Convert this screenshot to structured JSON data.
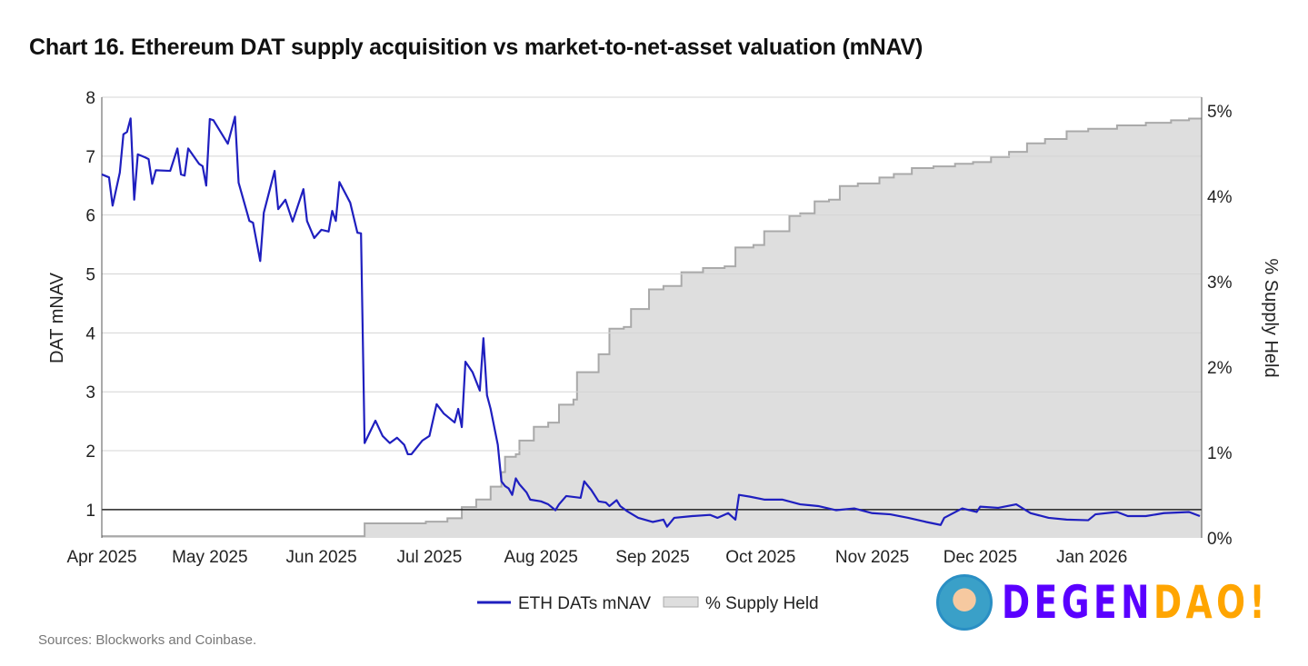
{
  "chart_data": {
    "type": "line",
    "title": "Chart 16. Ethereum DAT supply acquisition vs market-to-net-asset valuation (mNAV)",
    "ylabel": "DAT mNAV",
    "y2label": "% Supply Held",
    "xlim": [
      "2025-04-01",
      "2026-01-31"
    ],
    "ylim": [
      0.52,
      8
    ],
    "y2lim": [
      0,
      5
    ],
    "x_ticks": [
      "Apr 2025",
      "May 2025",
      "Jun 2025",
      "Jul 2025",
      "Aug 2025",
      "Sep 2025",
      "Oct 2025",
      "Nov 2025",
      "Dec 2025",
      "Jan 2026"
    ],
    "x_tick_dates": [
      "2025-04-01",
      "2025-05-01",
      "2025-06-01",
      "2025-07-01",
      "2025-08-01",
      "2025-09-01",
      "2025-10-01",
      "2025-11-01",
      "2025-12-01",
      "2026-01-01"
    ],
    "y_ticks": [
      "1",
      "2",
      "3",
      "4",
      "5",
      "6",
      "7",
      "8"
    ],
    "y2_ticks": [
      "0%",
      "1%",
      "2%",
      "3%",
      "4%",
      "5%"
    ],
    "reference_line": 1,
    "grid": true,
    "legend_placement": "bottom",
    "series": [
      {
        "name": "ETH DATs mNAV",
        "axis": "left",
        "color": "#1f1fbf",
        "style": "line",
        "points": [
          [
            "2025-04-01",
            6.69
          ],
          [
            "2025-04-03",
            6.64
          ],
          [
            "2025-04-04",
            6.16
          ],
          [
            "2025-04-06",
            6.72
          ],
          [
            "2025-04-07",
            7.37
          ],
          [
            "2025-04-08",
            7.41
          ],
          [
            "2025-04-09",
            7.64
          ],
          [
            "2025-04-10",
            6.26
          ],
          [
            "2025-04-11",
            7.03
          ],
          [
            "2025-04-13",
            6.98
          ],
          [
            "2025-04-14",
            6.95
          ],
          [
            "2025-04-15",
            6.53
          ],
          [
            "2025-04-16",
            6.76
          ],
          [
            "2025-04-20",
            6.75
          ],
          [
            "2025-04-22",
            7.13
          ],
          [
            "2025-04-23",
            6.69
          ],
          [
            "2025-04-24",
            6.67
          ],
          [
            "2025-04-25",
            7.13
          ],
          [
            "2025-04-28",
            6.87
          ],
          [
            "2025-04-29",
            6.83
          ],
          [
            "2025-04-30",
            6.5
          ],
          [
            "2025-05-01",
            7.63
          ],
          [
            "2025-05-02",
            7.61
          ],
          [
            "2025-05-06",
            7.21
          ],
          [
            "2025-05-08",
            7.67
          ],
          [
            "2025-05-09",
            6.55
          ],
          [
            "2025-05-12",
            5.9
          ],
          [
            "2025-05-13",
            5.87
          ],
          [
            "2025-05-15",
            5.22
          ],
          [
            "2025-05-16",
            6.04
          ],
          [
            "2025-05-19",
            6.75
          ],
          [
            "2025-05-20",
            6.1
          ],
          [
            "2025-05-22",
            6.26
          ],
          [
            "2025-05-24",
            5.89
          ],
          [
            "2025-05-27",
            6.44
          ],
          [
            "2025-05-28",
            5.9
          ],
          [
            "2025-05-30",
            5.61
          ],
          [
            "2025-06-01",
            5.75
          ],
          [
            "2025-06-03",
            5.72
          ],
          [
            "2025-06-04",
            6.07
          ],
          [
            "2025-06-05",
            5.9
          ],
          [
            "2025-06-06",
            6.56
          ],
          [
            "2025-06-09",
            6.21
          ],
          [
            "2025-06-11",
            5.7
          ],
          [
            "2025-06-12",
            5.69
          ],
          [
            "2025-06-13",
            2.13
          ],
          [
            "2025-06-16",
            2.51
          ],
          [
            "2025-06-18",
            2.25
          ],
          [
            "2025-06-20",
            2.13
          ],
          [
            "2025-06-22",
            2.22
          ],
          [
            "2025-06-24",
            2.1
          ],
          [
            "2025-06-25",
            1.94
          ],
          [
            "2025-06-26",
            1.94
          ],
          [
            "2025-06-29",
            2.17
          ],
          [
            "2025-07-01",
            2.25
          ],
          [
            "2025-07-03",
            2.79
          ],
          [
            "2025-07-05",
            2.63
          ],
          [
            "2025-07-08",
            2.48
          ],
          [
            "2025-07-09",
            2.71
          ],
          [
            "2025-07-10",
            2.4
          ],
          [
            "2025-07-11",
            3.51
          ],
          [
            "2025-07-13",
            3.33
          ],
          [
            "2025-07-15",
            3.02
          ],
          [
            "2025-07-16",
            3.91
          ],
          [
            "2025-07-17",
            2.94
          ],
          [
            "2025-07-18",
            2.71
          ],
          [
            "2025-07-20",
            2.1
          ],
          [
            "2025-07-21",
            1.48
          ],
          [
            "2025-07-22",
            1.4
          ],
          [
            "2025-07-23",
            1.36
          ],
          [
            "2025-07-24",
            1.25
          ],
          [
            "2025-07-25",
            1.53
          ],
          [
            "2025-07-26",
            1.43
          ],
          [
            "2025-07-28",
            1.29
          ],
          [
            "2025-07-29",
            1.17
          ],
          [
            "2025-08-01",
            1.14
          ],
          [
            "2025-08-03",
            1.09
          ],
          [
            "2025-08-05",
            0.99
          ],
          [
            "2025-08-06",
            1.09
          ],
          [
            "2025-08-08",
            1.23
          ],
          [
            "2025-08-12",
            1.2
          ],
          [
            "2025-08-13",
            1.48
          ],
          [
            "2025-08-15",
            1.33
          ],
          [
            "2025-08-17",
            1.14
          ],
          [
            "2025-08-19",
            1.12
          ],
          [
            "2025-08-20",
            1.06
          ],
          [
            "2025-08-22",
            1.16
          ],
          [
            "2025-08-23",
            1.06
          ],
          [
            "2025-08-25",
            0.97
          ],
          [
            "2025-08-28",
            0.86
          ],
          [
            "2025-09-01",
            0.79
          ],
          [
            "2025-09-04",
            0.83
          ],
          [
            "2025-09-05",
            0.71
          ],
          [
            "2025-09-07",
            0.86
          ],
          [
            "2025-09-12",
            0.89
          ],
          [
            "2025-09-17",
            0.91
          ],
          [
            "2025-09-19",
            0.86
          ],
          [
            "2025-09-22",
            0.94
          ],
          [
            "2025-09-24",
            0.83
          ],
          [
            "2025-09-25",
            1.25
          ],
          [
            "2025-09-28",
            1.22
          ],
          [
            "2025-10-02",
            1.17
          ],
          [
            "2025-10-07",
            1.17
          ],
          [
            "2025-10-12",
            1.09
          ],
          [
            "2025-10-17",
            1.06
          ],
          [
            "2025-10-22",
            0.99
          ],
          [
            "2025-10-27",
            1.02
          ],
          [
            "2025-11-01",
            0.94
          ],
          [
            "2025-11-06",
            0.92
          ],
          [
            "2025-11-11",
            0.86
          ],
          [
            "2025-11-16",
            0.79
          ],
          [
            "2025-11-20",
            0.74
          ],
          [
            "2025-11-21",
            0.86
          ],
          [
            "2025-11-26",
            1.02
          ],
          [
            "2025-11-30",
            0.96
          ],
          [
            "2025-12-01",
            1.05
          ],
          [
            "2025-12-06",
            1.03
          ],
          [
            "2025-12-11",
            1.09
          ],
          [
            "2025-12-15",
            0.94
          ],
          [
            "2025-12-20",
            0.86
          ],
          [
            "2025-12-25",
            0.83
          ],
          [
            "2025-12-31",
            0.82
          ],
          [
            "2026-01-02",
            0.92
          ],
          [
            "2026-01-08",
            0.96
          ],
          [
            "2026-01-11",
            0.89
          ],
          [
            "2026-01-16",
            0.89
          ],
          [
            "2026-01-21",
            0.94
          ],
          [
            "2026-01-28",
            0.96
          ],
          [
            "2026-01-31",
            0.89
          ]
        ]
      },
      {
        "name": "% Supply Held",
        "axis": "right",
        "color": "#a9a9a9",
        "fill": "#dedede",
        "style": "step-area",
        "points": [
          [
            "2025-04-01",
            0.02
          ],
          [
            "2025-06-13",
            0.17
          ],
          [
            "2025-06-30",
            0.19
          ],
          [
            "2025-07-06",
            0.23
          ],
          [
            "2025-07-10",
            0.36
          ],
          [
            "2025-07-14",
            0.45
          ],
          [
            "2025-07-18",
            0.6
          ],
          [
            "2025-07-21",
            0.77
          ],
          [
            "2025-07-22",
            0.95
          ],
          [
            "2025-07-25",
            0.98
          ],
          [
            "2025-07-26",
            1.14
          ],
          [
            "2025-07-30",
            1.3
          ],
          [
            "2025-08-03",
            1.35
          ],
          [
            "2025-08-06",
            1.56
          ],
          [
            "2025-08-10",
            1.62
          ],
          [
            "2025-08-11",
            1.94
          ],
          [
            "2025-08-17",
            2.15
          ],
          [
            "2025-08-20",
            2.45
          ],
          [
            "2025-08-24",
            2.47
          ],
          [
            "2025-08-26",
            2.68
          ],
          [
            "2025-08-31",
            2.91
          ],
          [
            "2025-09-04",
            2.95
          ],
          [
            "2025-09-09",
            3.11
          ],
          [
            "2025-09-15",
            3.16
          ],
          [
            "2025-09-21",
            3.18
          ],
          [
            "2025-09-24",
            3.4
          ],
          [
            "2025-09-29",
            3.43
          ],
          [
            "2025-10-02",
            3.59
          ],
          [
            "2025-10-09",
            3.77
          ],
          [
            "2025-10-12",
            3.8
          ],
          [
            "2025-10-16",
            3.94
          ],
          [
            "2025-10-20",
            3.96
          ],
          [
            "2025-10-23",
            4.12
          ],
          [
            "2025-10-28",
            4.15
          ],
          [
            "2025-11-03",
            4.22
          ],
          [
            "2025-11-07",
            4.26
          ],
          [
            "2025-11-12",
            4.33
          ],
          [
            "2025-11-18",
            4.35
          ],
          [
            "2025-11-24",
            4.38
          ],
          [
            "2025-11-29",
            4.4
          ],
          [
            "2025-12-04",
            4.46
          ],
          [
            "2025-12-09",
            4.52
          ],
          [
            "2025-12-14",
            4.62
          ],
          [
            "2025-12-19",
            4.67
          ],
          [
            "2025-12-25",
            4.76
          ],
          [
            "2025-12-31",
            4.79
          ],
          [
            "2026-01-08",
            4.83
          ],
          [
            "2026-01-16",
            4.86
          ],
          [
            "2026-01-23",
            4.89
          ],
          [
            "2026-01-28",
            4.91
          ],
          [
            "2026-01-31",
            4.91
          ]
        ]
      }
    ]
  },
  "legend": [
    "ETH DATs mNAV",
    "% Supply Held"
  ],
  "source": "Sources: Blockworks and Coinbase.",
  "logo": {
    "text_a": "DEGEN",
    "text_b": "DAO!",
    "color_a": "#5a00ff",
    "color_b": "#ffa500"
  }
}
